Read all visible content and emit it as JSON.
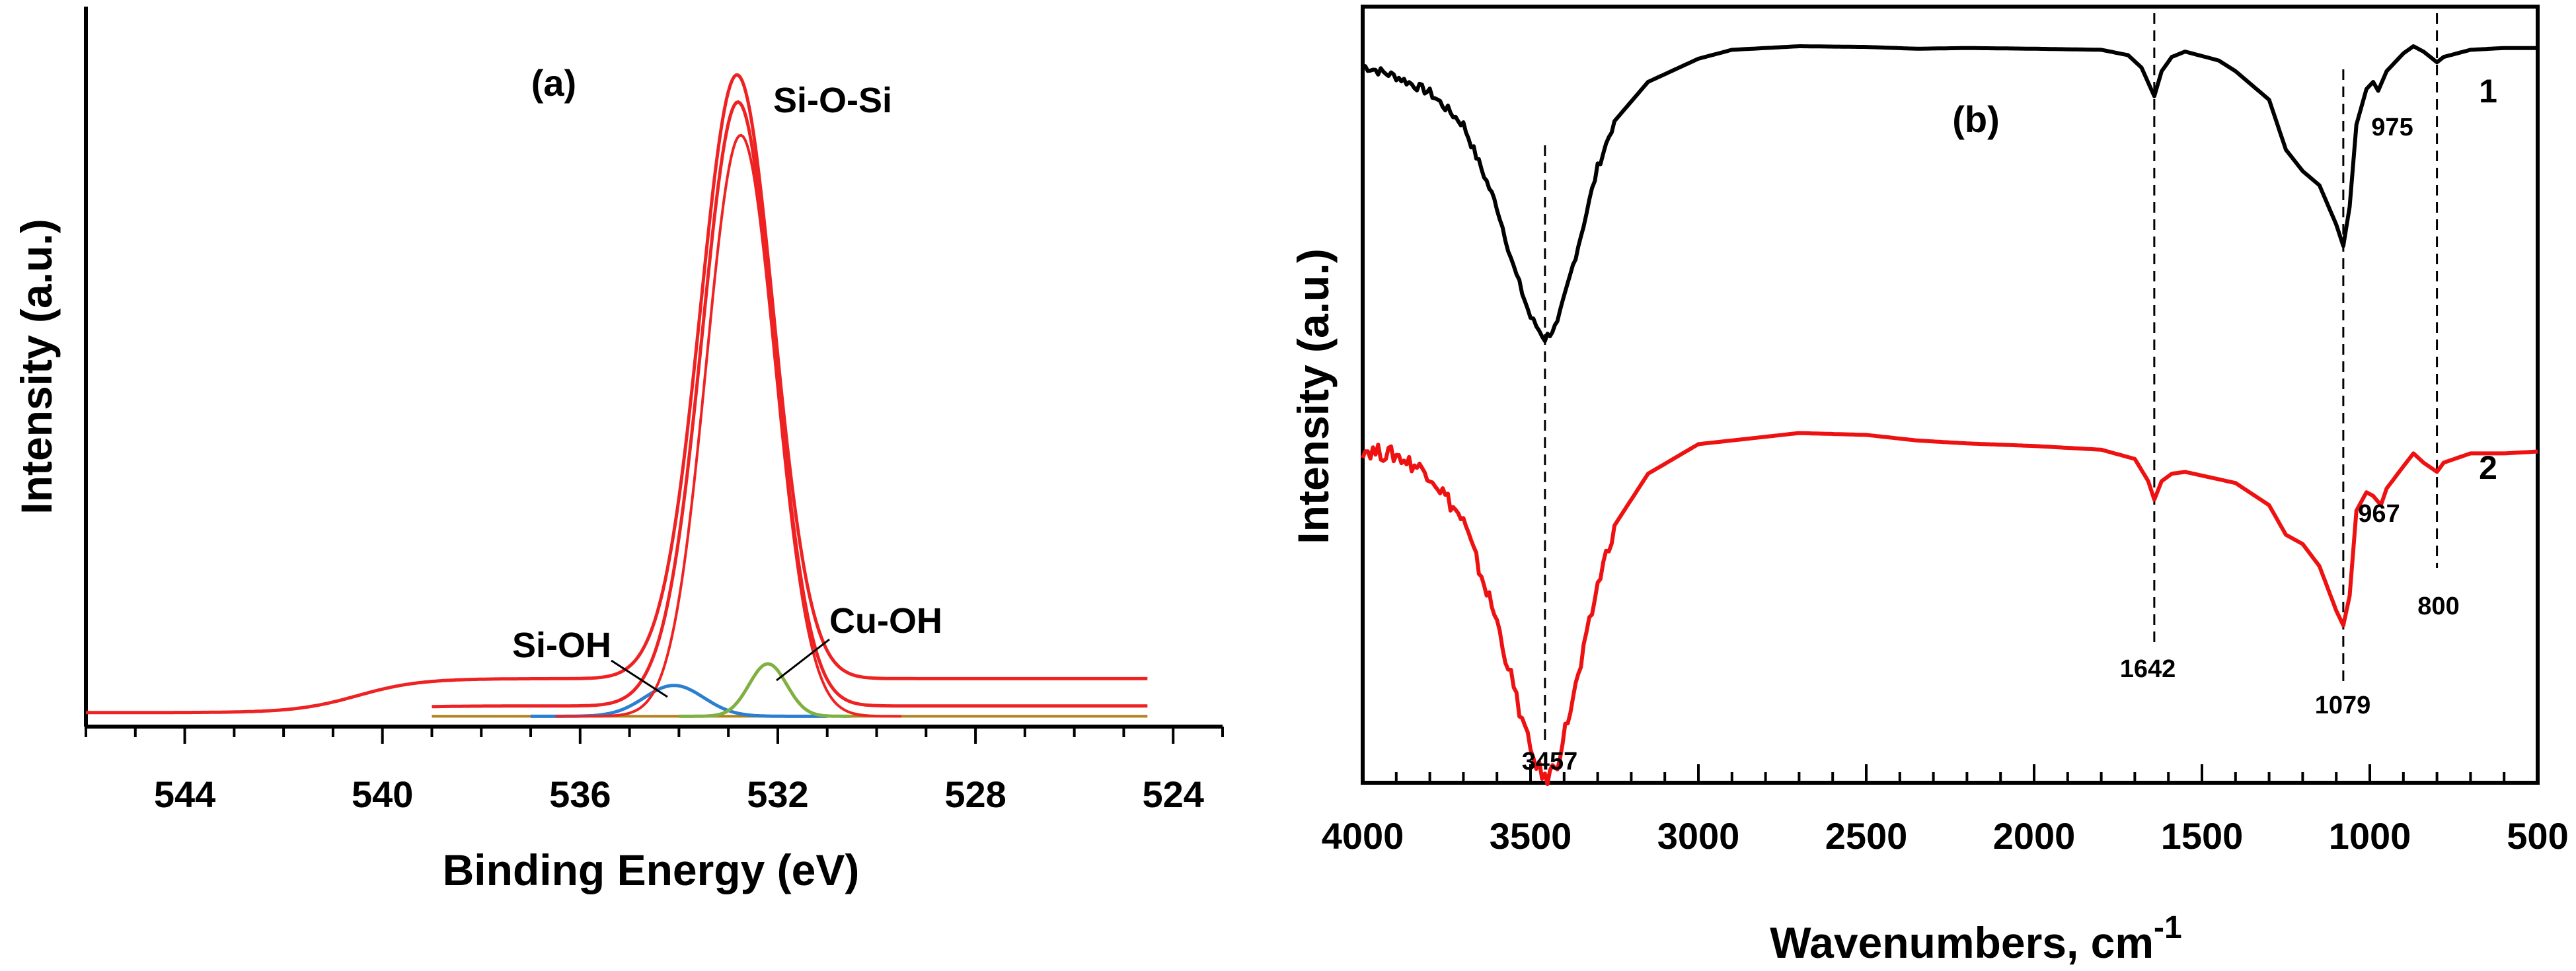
{
  "chart_data": [
    {
      "panel": "(a)",
      "type": "line",
      "xlabel": "Binding Energy (eV)",
      "ylabel": "Intensity (a.u.)",
      "xlim": [
        546,
        523
      ],
      "ylim": [
        0,
        1
      ],
      "x_ticks": [
        "544",
        "540",
        "536",
        "532",
        "528",
        "524"
      ],
      "x_tick_values": [
        544,
        540,
        536,
        532,
        528,
        524
      ],
      "colors": {
        "envelope": "#ee2222",
        "si_oh": "#2a7fd0",
        "cu_oh": "#7fb040"
      },
      "series": [
        {
          "name": "Si-O-Si",
          "center": 532.8,
          "sigma": 0.72,
          "amplitude": 0.975
        },
        {
          "name": "Si-OH",
          "center": 534.1,
          "sigma": 0.6,
          "amplitude": 0.05
        },
        {
          "name": "Cu-OH",
          "center": 532.2,
          "sigma": 0.38,
          "amplitude": 0.085
        }
      ],
      "annotations": [
        "Si-O-Si",
        "Si-OH",
        "Cu-OH"
      ]
    },
    {
      "panel": "(b)",
      "type": "line",
      "xlabel": "Wavenumbers, cm",
      "xlabel_superscript": "-1",
      "ylabel": "Intensity (a.u.)",
      "xlim": [
        4000,
        500
      ],
      "x_ticks": [
        "4000",
        "3500",
        "3000",
        "2500",
        "2000",
        "1500",
        "1000",
        "500"
      ],
      "x_tick_values": [
        4000,
        3500,
        3000,
        2500,
        2000,
        1500,
        1000,
        500
      ],
      "series": [
        {
          "name": "1",
          "color": "#000000",
          "points": [
            [
              4000,
              0.945
            ],
            [
              3900,
              0.915
            ],
            [
              3800,
              0.87
            ],
            [
              3700,
              0.78
            ],
            [
              3600,
              0.55
            ],
            [
              3550,
              0.38
            ],
            [
              3500,
              0.24
            ],
            [
              3457,
              0.18
            ],
            [
              3420,
              0.22
            ],
            [
              3350,
              0.47
            ],
            [
              3300,
              0.66
            ],
            [
              3250,
              0.79
            ],
            [
              3150,
              0.9
            ],
            [
              3000,
              0.965
            ],
            [
              2900,
              0.99
            ],
            [
              2700,
              1.0
            ],
            [
              2500,
              0.998
            ],
            [
              2350,
              0.993
            ],
            [
              2200,
              0.995
            ],
            [
              2000,
              0.993
            ],
            [
              1800,
              0.99
            ],
            [
              1720,
              0.975
            ],
            [
              1680,
              0.94
            ],
            [
              1642,
              0.86
            ],
            [
              1620,
              0.93
            ],
            [
              1590,
              0.97
            ],
            [
              1550,
              0.985
            ],
            [
              1450,
              0.96
            ],
            [
              1400,
              0.93
            ],
            [
              1300,
              0.85
            ],
            [
              1250,
              0.71
            ],
            [
              1200,
              0.65
            ],
            [
              1150,
              0.61
            ],
            [
              1100,
              0.5
            ],
            [
              1079,
              0.44
            ],
            [
              1060,
              0.55
            ],
            [
              1040,
              0.78
            ],
            [
              1010,
              0.88
            ],
            [
              990,
              0.9
            ],
            [
              975,
              0.875
            ],
            [
              950,
              0.93
            ],
            [
              900,
              0.98
            ],
            [
              870,
              1.0
            ],
            [
              840,
              0.985
            ],
            [
              800,
              0.955
            ],
            [
              780,
              0.97
            ],
            [
              700,
              0.99
            ],
            [
              600,
              0.995
            ],
            [
              500,
              0.995
            ]
          ]
        },
        {
          "name": "2",
          "color": "#ee1111",
          "points": [
            [
              4000,
              0.945
            ],
            [
              3900,
              0.93
            ],
            [
              3800,
              0.88
            ],
            [
              3700,
              0.75
            ],
            [
              3600,
              0.48
            ],
            [
              3550,
              0.3
            ],
            [
              3500,
              0.13
            ],
            [
              3457,
              0.05
            ],
            [
              3420,
              0.1
            ],
            [
              3350,
              0.36
            ],
            [
              3300,
              0.58
            ],
            [
              3250,
              0.74
            ],
            [
              3150,
              0.88
            ],
            [
              3000,
              0.96
            ],
            [
              2900,
              0.97
            ],
            [
              2700,
              0.99
            ],
            [
              2500,
              0.985
            ],
            [
              2350,
              0.97
            ],
            [
              2200,
              0.962
            ],
            [
              2000,
              0.955
            ],
            [
              1800,
              0.945
            ],
            [
              1700,
              0.92
            ],
            [
              1660,
              0.86
            ],
            [
              1642,
              0.81
            ],
            [
              1620,
              0.86
            ],
            [
              1590,
              0.88
            ],
            [
              1550,
              0.885
            ],
            [
              1450,
              0.865
            ],
            [
              1400,
              0.855
            ],
            [
              1300,
              0.795
            ],
            [
              1250,
              0.715
            ],
            [
              1200,
              0.69
            ],
            [
              1150,
              0.63
            ],
            [
              1100,
              0.51
            ],
            [
              1079,
              0.47
            ],
            [
              1060,
              0.55
            ],
            [
              1040,
              0.78
            ],
            [
              1010,
              0.83
            ],
            [
              990,
              0.82
            ],
            [
              967,
              0.795
            ],
            [
              950,
              0.84
            ],
            [
              900,
              0.9
            ],
            [
              870,
              0.935
            ],
            [
              840,
              0.91
            ],
            [
              800,
              0.885
            ],
            [
              780,
              0.91
            ],
            [
              700,
              0.935
            ],
            [
              600,
              0.935
            ],
            [
              500,
              0.94
            ]
          ]
        }
      ],
      "reference_lines": [
        3457,
        1642,
        1079,
        800
      ],
      "peak_labels": [
        {
          "text": "975",
          "x": 975,
          "series": "1"
        },
        {
          "text": "967",
          "x": 967,
          "series": "2"
        },
        {
          "text": "800",
          "x": 800,
          "series": "2"
        },
        {
          "text": "1642",
          "x": 1642,
          "series": "2"
        },
        {
          "text": "1079",
          "x": 1079,
          "series": "2"
        },
        {
          "text": "3457",
          "x": 3457,
          "series": "2"
        }
      ]
    }
  ]
}
